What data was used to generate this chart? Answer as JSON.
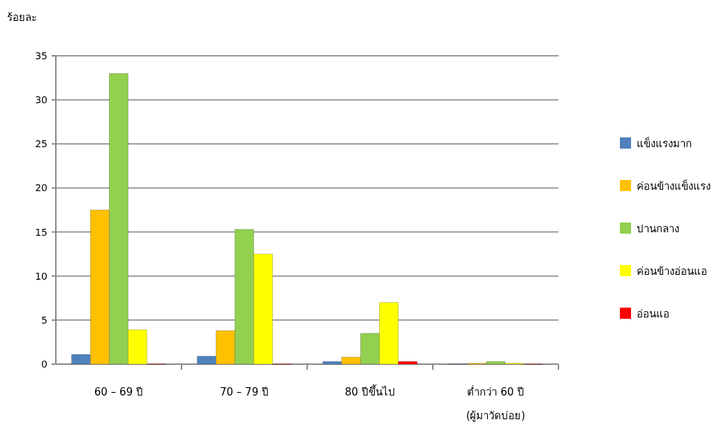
{
  "chart_data": {
    "type": "bar",
    "ylabel": "ร้อยละ",
    "categories": [
      "60 – 69 ปี",
      "70 – 79 ปี",
      "80 ปีขึ้นไป",
      "ต่ำกว่า 60 ปี (ผู้มาวัดบ่อย)"
    ],
    "series": [
      {
        "name": "แข็งแรงมาก",
        "color": "#4f81bd",
        "values": [
          1.1,
          0.9,
          0.3,
          0
        ]
      },
      {
        "name": "ค่อนข้างแข็งแรง",
        "color": "#ffc000",
        "values": [
          17.5,
          3.8,
          0.8,
          0.1
        ]
      },
      {
        "name": "ปานกลาง",
        "color": "#92d050",
        "values": [
          33,
          15.3,
          3.5,
          0.3
        ]
      },
      {
        "name": "ค่อนข้างอ่อนแอ",
        "color": "#ffff00",
        "values": [
          3.9,
          12.5,
          7,
          0.1
        ]
      },
      {
        "name": "อ่อนแอ",
        "color": "#ff0000",
        "values": [
          0,
          0,
          0.3,
          0
        ]
      }
    ],
    "ylim": [
      0,
      35
    ],
    "yticks": [
      0,
      5,
      10,
      15,
      20,
      25,
      30,
      35
    ],
    "grid": "y",
    "legend": "right"
  }
}
